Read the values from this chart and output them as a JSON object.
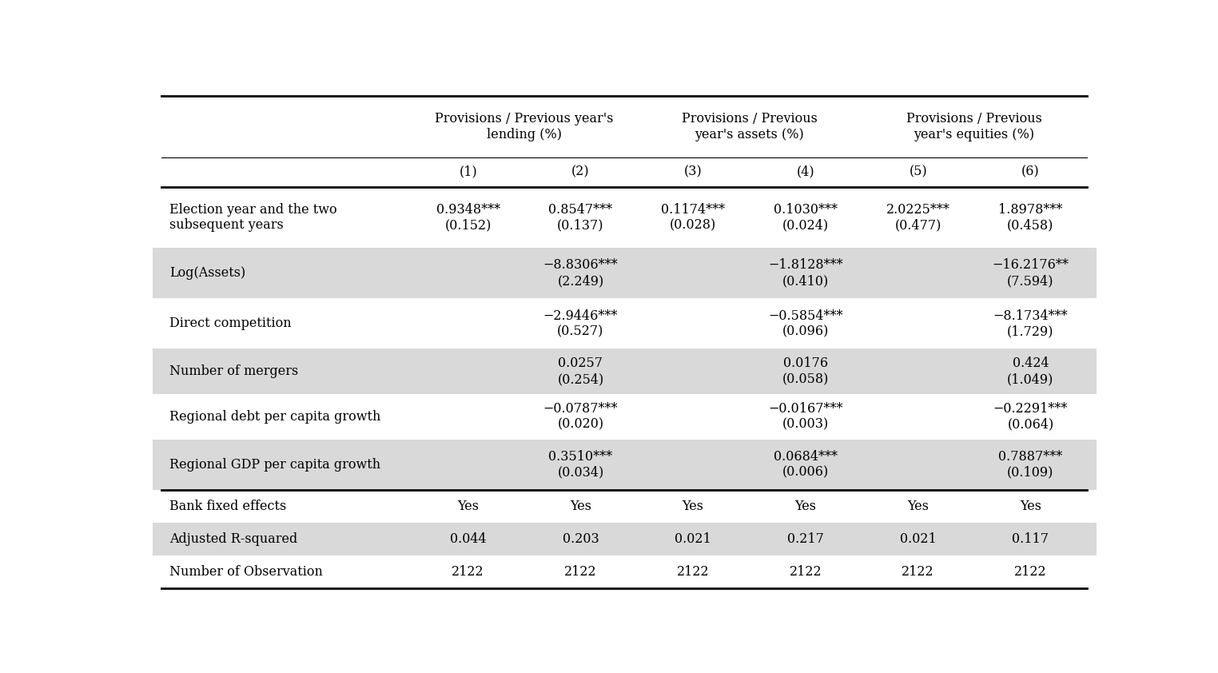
{
  "col_headers_line2": [
    "(1)",
    "(2)",
    "(3)",
    "(4)",
    "(5)",
    "(6)"
  ],
  "group_labels": [
    "Provisions / Previous year's\nlending (%)",
    "Provisions / Previous\nyear's assets (%)",
    "Provisions / Previous\nyear's equities (%)"
  ],
  "row_labels": [
    "Election year and the two\nsubsequent years",
    "Log(Assets)",
    "Direct competition",
    "Number of mergers",
    "Regional debt per capita growth",
    "Regional GDP per capita growth",
    "Bank fixed effects",
    "Adjusted R-squared",
    "Number of Observation"
  ],
  "data": [
    [
      "0.9348***\n(0.152)",
      "0.8547***\n(0.137)",
      "0.1174***\n(0.028)",
      "0.1030***\n(0.024)",
      "2.0225***\n(0.477)",
      "1.8978***\n(0.458)"
    ],
    [
      "",
      "−8.8306***\n(2.249)",
      "",
      "−1.8128***\n(0.410)",
      "",
      "−16.2176**\n(7.594)"
    ],
    [
      "",
      "−2.9446***\n(0.527)",
      "",
      "−0.5854***\n(0.096)",
      "",
      "−8.1734***\n(1.729)"
    ],
    [
      "",
      "0.0257\n(0.254)",
      "",
      "0.0176\n(0.058)",
      "",
      "0.424\n(1.049)"
    ],
    [
      "",
      "−0.0787***\n(0.020)",
      "",
      "−0.0167***\n(0.003)",
      "",
      "−0.2291***\n(0.064)"
    ],
    [
      "",
      "0.3510***\n(0.034)",
      "",
      "0.0684***\n(0.006)",
      "",
      "0.7887***\n(0.109)"
    ],
    [
      "Yes",
      "Yes",
      "Yes",
      "Yes",
      "Yes",
      "Yes"
    ],
    [
      "0.044",
      "0.203",
      "0.021",
      "0.217",
      "0.021",
      "0.117"
    ],
    [
      "2122",
      "2122",
      "2122",
      "2122",
      "2122",
      "2122"
    ]
  ],
  "shaded_rows": [
    1,
    3,
    5,
    7
  ],
  "bg_color": "#ffffff",
  "shade_color": "#d9d9d9",
  "text_color": "#000000",
  "font_size": 11.5,
  "header_font_size": 11.5
}
